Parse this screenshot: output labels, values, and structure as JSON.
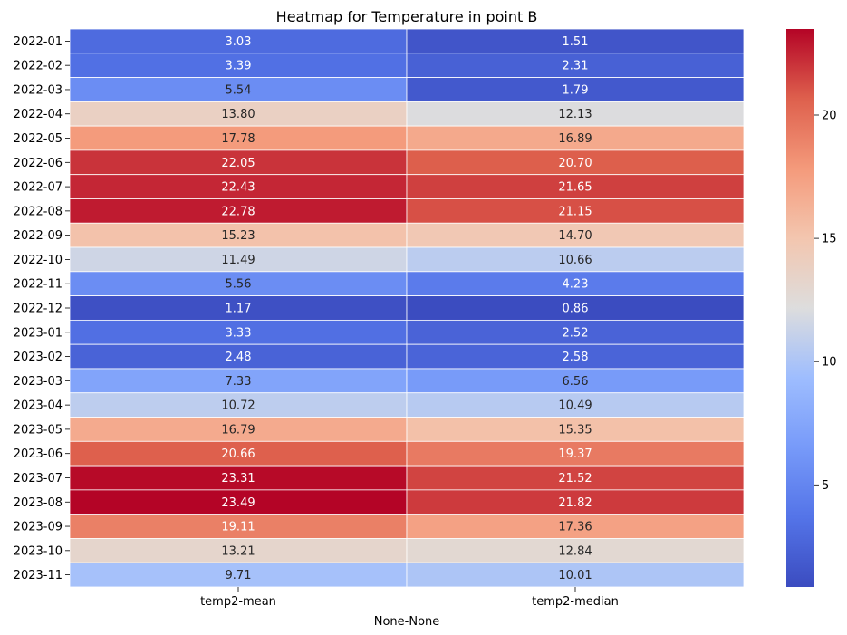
{
  "chart_data": {
    "type": "heatmap",
    "title": "Heatmap for Temperature in point B",
    "xlabel": "None-None",
    "ylabel": "",
    "columns": [
      "temp2-mean",
      "temp2-median"
    ],
    "rows": [
      "2022-01",
      "2022-02",
      "2022-03",
      "2022-04",
      "2022-05",
      "2022-06",
      "2022-07",
      "2022-08",
      "2022-09",
      "2022-10",
      "2022-11",
      "2022-12",
      "2023-01",
      "2023-02",
      "2023-03",
      "2023-04",
      "2023-05",
      "2023-06",
      "2023-07",
      "2023-08",
      "2023-09",
      "2023-10",
      "2023-11"
    ],
    "values": [
      [
        3.03,
        1.51
      ],
      [
        3.39,
        2.31
      ],
      [
        5.54,
        1.79
      ],
      [
        13.8,
        12.13
      ],
      [
        17.78,
        16.89
      ],
      [
        22.05,
        20.7
      ],
      [
        22.43,
        21.65
      ],
      [
        22.78,
        21.15
      ],
      [
        15.23,
        14.7
      ],
      [
        11.49,
        10.66
      ],
      [
        5.56,
        4.23
      ],
      [
        1.17,
        0.86
      ],
      [
        3.33,
        2.52
      ],
      [
        2.48,
        2.58
      ],
      [
        7.33,
        6.56
      ],
      [
        10.72,
        10.49
      ],
      [
        16.79,
        15.35
      ],
      [
        20.66,
        19.37
      ],
      [
        23.31,
        21.52
      ],
      [
        23.49,
        21.82
      ],
      [
        19.11,
        17.36
      ],
      [
        13.21,
        12.84
      ],
      [
        9.71,
        10.01
      ]
    ],
    "value_format": "2 decimals",
    "colormap": "coolwarm",
    "color_range": [
      0.86,
      23.49
    ],
    "colorbar_ticks": [
      5,
      10,
      15,
      20
    ],
    "grid": true,
    "cell_border_color": "#ffffff",
    "colors": {
      "cold": "#3b4cc0",
      "neutral": "#dddddd",
      "hot": "#b40426"
    }
  }
}
